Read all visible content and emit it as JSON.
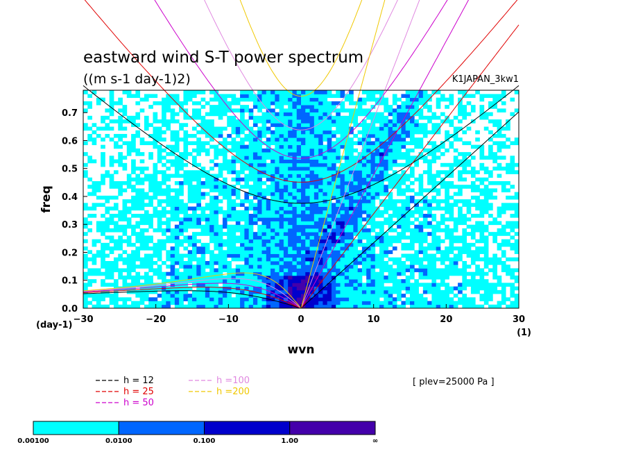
{
  "chart_data": {
    "type": "heatmap",
    "title": "eastward wind S-T power spectrum",
    "subtitle": "((m s-1 day-1)2)",
    "run_label": "K1JAPAN_3kw1",
    "xlabel": "wvn",
    "ylabel": "freq",
    "x_unit_label": "(1)",
    "y_unit_label": "(day-1)",
    "xlim": [
      -30,
      30
    ],
    "ylim": [
      0,
      0.78
    ],
    "x_ticks": [
      -30,
      -20,
      -10,
      0,
      10,
      20,
      30
    ],
    "x_tick_labels": [
      "−30",
      "−20",
      "−10",
      "0",
      "10",
      "20",
      "30"
    ],
    "y_ticks": [
      0,
      0.1,
      0.2,
      0.3,
      0.4,
      0.5,
      0.6,
      0.7
    ],
    "y_tick_labels": [
      "0.0",
      "0.1",
      "0.2",
      "0.3",
      "0.4",
      "0.5",
      "0.6",
      "0.7"
    ],
    "level_note": "[ plev=25000 Pa ]",
    "color_levels": {
      "boundaries": [
        "0.00100",
        "0.0100",
        "0.100",
        "1.00",
        "∞"
      ],
      "colors": [
        "#00ffff",
        "#0066ff",
        "#0000cc",
        "#4400aa"
      ]
    },
    "dispersion_curves": [
      {
        "label": "h = 12",
        "h": 12,
        "color": "#000000"
      },
      {
        "label": "h = 25",
        "h": 25,
        "color": "#e00000"
      },
      {
        "label": "h = 50",
        "h": 50,
        "color": "#cc00cc"
      },
      {
        "label": "h =100",
        "h": 100,
        "color": "#e088e0"
      },
      {
        "label": "h =200",
        "h": 200,
        "color": "#f0c800"
      }
    ],
    "curve_families": [
      "kelvin",
      "n1_inertia_gravity",
      "n1_rossby"
    ]
  }
}
